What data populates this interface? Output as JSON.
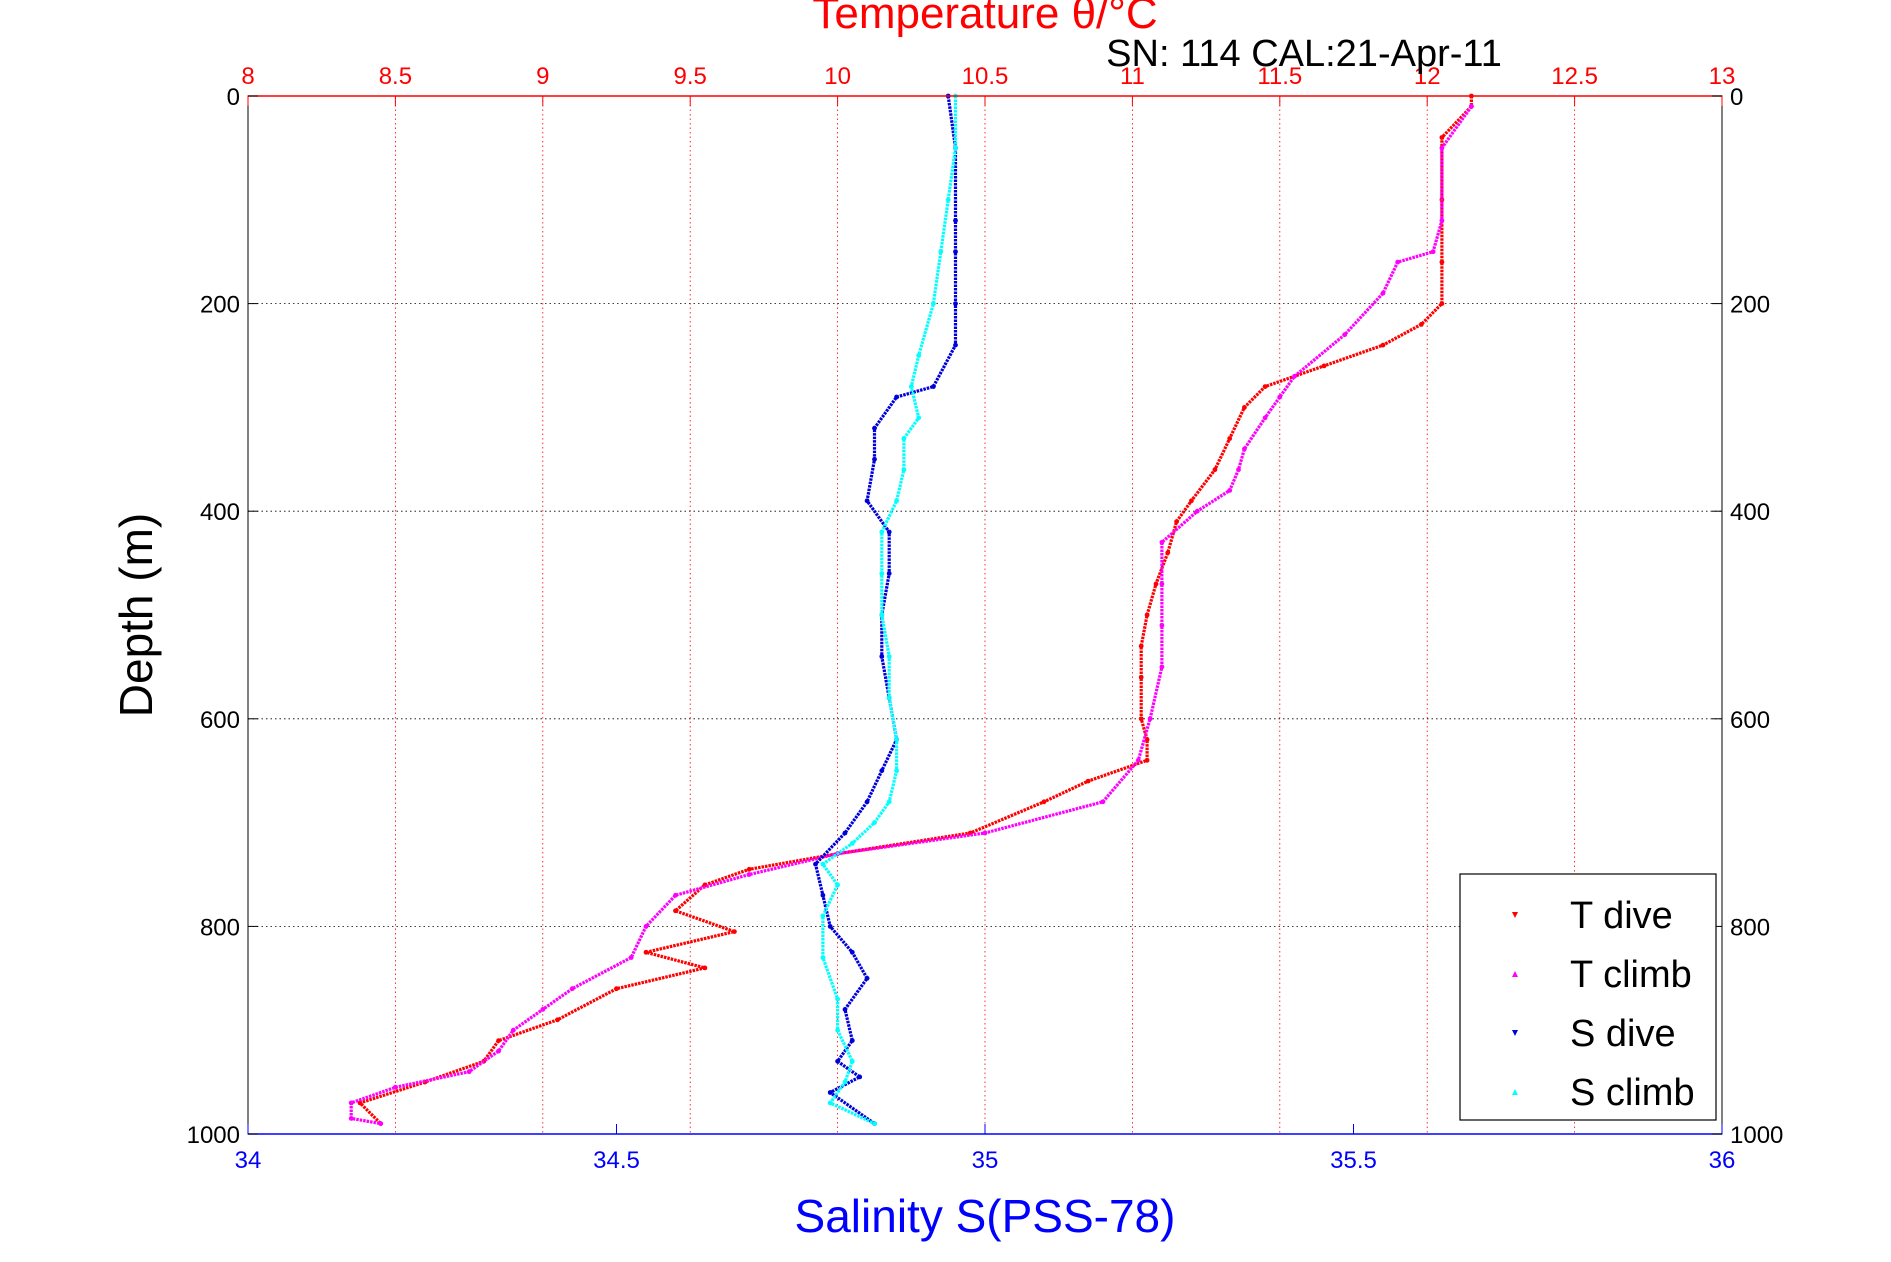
{
  "chart_data": {
    "type": "scatter",
    "title": "Temperature θ/°C",
    "subtitle": "SN: 114  CAL:21-Apr-11",
    "xlabel": "Salinity S(PSS-78)",
    "ylabel": "Depth (m)",
    "x_top": {
      "label": "Temperature θ/°C",
      "range": [
        8,
        13
      ],
      "ticks": [
        "8",
        "8.5",
        "9",
        "9.5",
        "10",
        "10.5",
        "11",
        "11.5",
        "12",
        "12.5",
        "13"
      ],
      "color": "#ff0000"
    },
    "x_bottom": {
      "label": "Salinity S(PSS-78)",
      "range": [
        34,
        36
      ],
      "ticks": [
        "34",
        "34.5",
        "35",
        "35.5",
        "36"
      ],
      "color": "#0000ff"
    },
    "y": {
      "label": "Depth (m)",
      "range": [
        0,
        1000
      ],
      "reversed": true,
      "ticks": [
        "0",
        "200",
        "400",
        "600",
        "800",
        "1000"
      ]
    },
    "grid": true,
    "legend_position": "bottom-right",
    "series": [
      {
        "name": "T dive",
        "axis": "temperature",
        "color": "#ff0000",
        "marker": "triangle-down",
        "points": [
          [
            12.15,
            0
          ],
          [
            12.15,
            10
          ],
          [
            12.05,
            40
          ],
          [
            12.05,
            100
          ],
          [
            12.05,
            160
          ],
          [
            12.05,
            200
          ],
          [
            11.98,
            220
          ],
          [
            11.85,
            240
          ],
          [
            11.65,
            260
          ],
          [
            11.45,
            280
          ],
          [
            11.38,
            300
          ],
          [
            11.33,
            330
          ],
          [
            11.28,
            360
          ],
          [
            11.2,
            390
          ],
          [
            11.15,
            410
          ],
          [
            11.12,
            440
          ],
          [
            11.08,
            470
          ],
          [
            11.05,
            500
          ],
          [
            11.03,
            530
          ],
          [
            11.03,
            560
          ],
          [
            11.03,
            600
          ],
          [
            11.05,
            620
          ],
          [
            11.05,
            640
          ],
          [
            10.85,
            660
          ],
          [
            10.7,
            680
          ],
          [
            10.45,
            710
          ],
          [
            10.0,
            730
          ],
          [
            9.7,
            745
          ],
          [
            9.55,
            760
          ],
          [
            9.45,
            785
          ],
          [
            9.65,
            805
          ],
          [
            9.35,
            825
          ],
          [
            9.55,
            840
          ],
          [
            9.25,
            860
          ],
          [
            9.05,
            890
          ],
          [
            8.85,
            910
          ],
          [
            8.8,
            930
          ],
          [
            8.6,
            950
          ],
          [
            8.38,
            970
          ],
          [
            8.45,
            990
          ]
        ]
      },
      {
        "name": "T climb",
        "axis": "temperature",
        "color": "#ff00ff",
        "marker": "triangle-up",
        "points": [
          [
            12.15,
            10
          ],
          [
            12.05,
            50
          ],
          [
            12.05,
            120
          ],
          [
            12.02,
            150
          ],
          [
            11.9,
            160
          ],
          [
            11.85,
            190
          ],
          [
            11.72,
            230
          ],
          [
            11.55,
            270
          ],
          [
            11.5,
            290
          ],
          [
            11.45,
            310
          ],
          [
            11.38,
            340
          ],
          [
            11.36,
            360
          ],
          [
            11.33,
            380
          ],
          [
            11.22,
            400
          ],
          [
            11.1,
            430
          ],
          [
            11.1,
            470
          ],
          [
            11.1,
            510
          ],
          [
            11.1,
            550
          ],
          [
            11.06,
            600
          ],
          [
            11.02,
            640
          ],
          [
            10.9,
            680
          ],
          [
            10.5,
            710
          ],
          [
            10.0,
            730
          ],
          [
            9.7,
            750
          ],
          [
            9.45,
            770
          ],
          [
            9.35,
            800
          ],
          [
            9.3,
            830
          ],
          [
            9.1,
            860
          ],
          [
            9.0,
            880
          ],
          [
            8.9,
            900
          ],
          [
            8.85,
            920
          ],
          [
            8.75,
            940
          ],
          [
            8.5,
            955
          ],
          [
            8.35,
            970
          ],
          [
            8.35,
            985
          ],
          [
            8.45,
            990
          ]
        ]
      },
      {
        "name": "S dive",
        "axis": "salinity",
        "color": "#0000dd",
        "marker": "triangle-down",
        "points": [
          [
            34.95,
            0
          ],
          [
            34.96,
            50
          ],
          [
            34.96,
            120
          ],
          [
            34.96,
            150
          ],
          [
            34.96,
            200
          ],
          [
            34.96,
            240
          ],
          [
            34.93,
            280
          ],
          [
            34.88,
            290
          ],
          [
            34.85,
            320
          ],
          [
            34.85,
            350
          ],
          [
            34.84,
            390
          ],
          [
            34.87,
            420
          ],
          [
            34.87,
            460
          ],
          [
            34.86,
            500
          ],
          [
            34.86,
            540
          ],
          [
            34.87,
            580
          ],
          [
            34.88,
            620
          ],
          [
            34.86,
            650
          ],
          [
            34.84,
            680
          ],
          [
            34.81,
            710
          ],
          [
            34.77,
            740
          ],
          [
            34.78,
            770
          ],
          [
            34.79,
            800
          ],
          [
            34.82,
            825
          ],
          [
            34.84,
            850
          ],
          [
            34.81,
            880
          ],
          [
            34.82,
            910
          ],
          [
            34.8,
            930
          ],
          [
            34.83,
            945
          ],
          [
            34.79,
            960
          ],
          [
            34.85,
            990
          ]
        ]
      },
      {
        "name": "S climb",
        "axis": "salinity",
        "color": "#00ffff",
        "marker": "triangle-up",
        "points": [
          [
            34.96,
            0
          ],
          [
            34.96,
            50
          ],
          [
            34.95,
            100
          ],
          [
            34.94,
            150
          ],
          [
            34.93,
            200
          ],
          [
            34.91,
            250
          ],
          [
            34.9,
            280
          ],
          [
            34.91,
            310
          ],
          [
            34.89,
            330
          ],
          [
            34.89,
            360
          ],
          [
            34.88,
            390
          ],
          [
            34.86,
            420
          ],
          [
            34.86,
            460
          ],
          [
            34.86,
            500
          ],
          [
            34.87,
            540
          ],
          [
            34.87,
            580
          ],
          [
            34.88,
            620
          ],
          [
            34.88,
            650
          ],
          [
            34.87,
            680
          ],
          [
            34.85,
            700
          ],
          [
            34.82,
            720
          ],
          [
            34.78,
            740
          ],
          [
            34.8,
            760
          ],
          [
            34.78,
            790
          ],
          [
            34.78,
            830
          ],
          [
            34.8,
            870
          ],
          [
            34.8,
            900
          ],
          [
            34.82,
            930
          ],
          [
            34.81,
            950
          ],
          [
            34.79,
            970
          ],
          [
            34.85,
            990
          ]
        ]
      }
    ]
  }
}
